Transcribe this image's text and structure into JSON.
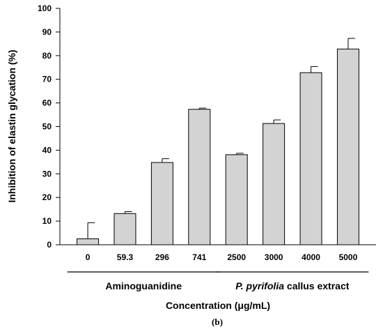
{
  "chart_data": {
    "type": "bar",
    "categories": [
      "0",
      "59.3",
      "296",
      "741",
      "2500",
      "3000",
      "4000",
      "5000"
    ],
    "values": [
      2.5,
      13.2,
      34.8,
      57.3,
      38.1,
      51.3,
      72.8,
      82.8
    ],
    "errors": [
      6.8,
      0.8,
      1.6,
      0.5,
      0.6,
      1.5,
      2.6,
      4.5
    ],
    "ylabel": "Inhibition of elastin glycation (%)",
    "xlabel": "Concentration (μg/mL)",
    "ylim": [
      0,
      100
    ],
    "yticks": [
      0,
      10,
      20,
      30,
      40,
      50,
      60,
      70,
      80,
      90,
      100
    ],
    "groups": [
      {
        "italic": "",
        "label": "Aminoguanidine",
        "start": 0,
        "end": 3
      },
      {
        "italic": "P. pyrifolia",
        "label": " callus extract",
        "start": 4,
        "end": 7
      }
    ],
    "bar_color": "#d3d3d3",
    "grid": false,
    "panel_label": "(b)"
  }
}
